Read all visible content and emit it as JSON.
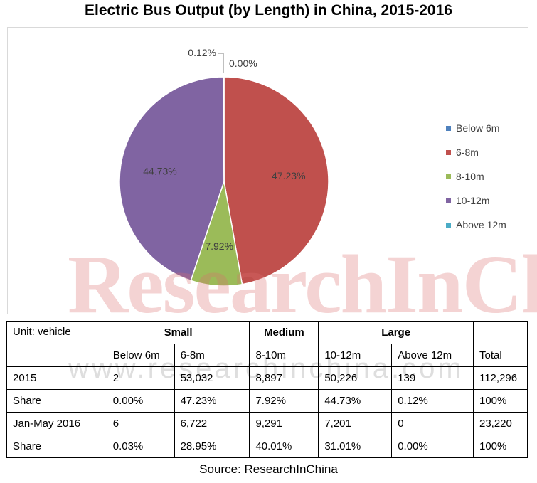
{
  "title": "Electric Bus Output (by Length) in China, 2015-2016",
  "source": "Source: ResearchInChina",
  "watermark": "ResearchInChina",
  "watermark_url": "www.researchinchina.com",
  "chart_data": {
    "type": "pie",
    "title": "Electric Bus Output (by Length) in China, 2015-2016",
    "categories": [
      "Below 6m",
      "6-8m",
      "8-10m",
      "10-12m",
      "Above 12m"
    ],
    "values": [
      0.0,
      47.23,
      7.92,
      44.73,
      0.12
    ],
    "labels": [
      "0.00%",
      "47.23%",
      "7.92%",
      "44.73%",
      "0.12%"
    ],
    "colors": [
      "#4f81bd",
      "#c0504d",
      "#9bbb59",
      "#8064a2",
      "#4bacc6"
    ],
    "legend_position": "right"
  },
  "table": {
    "unit_label": "Unit: vehicle",
    "groups": [
      "Small",
      "Medium",
      "Large"
    ],
    "headers": [
      "Below 6m",
      "6-8m",
      "8-10m",
      "10-12m",
      "Above 12m",
      "Total"
    ],
    "rows": [
      {
        "label": "2015",
        "cells": [
          "2",
          "53,032",
          "8,897",
          "50,226",
          "139",
          "112,296"
        ]
      },
      {
        "label": "Share",
        "cells": [
          "0.00%",
          "47.23%",
          "7.92%",
          "44.73%",
          "0.12%",
          "100%"
        ]
      },
      {
        "label": "Jan-May 2016",
        "cells": [
          "6",
          "6,722",
          "9,291",
          "7,201",
          "0",
          "23,220"
        ]
      },
      {
        "label": "Share",
        "cells": [
          "0.03%",
          "28.95%",
          "40.01%",
          "31.01%",
          "0.00%",
          "100%"
        ]
      }
    ]
  }
}
